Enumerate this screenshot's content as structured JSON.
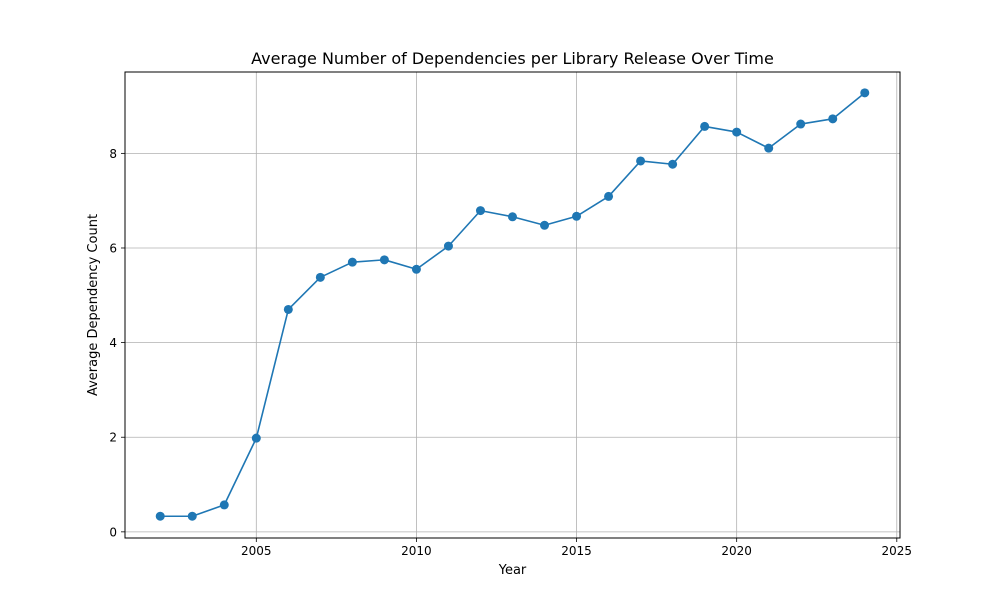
{
  "chart_data": {
    "type": "line",
    "title": "Average Number of Dependencies per Library Release Over Time",
    "xlabel": "Year",
    "ylabel": "Average Dependency Count",
    "xlim": [
      2000.9,
      2025.1
    ],
    "ylim": [
      -0.13,
      9.72
    ],
    "x_ticks": [
      2005,
      2010,
      2015,
      2020,
      2025
    ],
    "y_ticks": [
      0,
      2,
      4,
      6,
      8
    ],
    "grid": true,
    "series": [
      {
        "color": "#1f77b4",
        "marker": "circle",
        "x": [
          2002,
          2003,
          2004,
          2005,
          2006,
          2007,
          2008,
          2009,
          2010,
          2011,
          2012,
          2013,
          2014,
          2015,
          2016,
          2017,
          2018,
          2019,
          2020,
          2021,
          2022,
          2023,
          2024
        ],
        "y": [
          0.33,
          0.33,
          0.57,
          1.98,
          4.7,
          5.38,
          5.7,
          5.75,
          5.55,
          6.04,
          6.79,
          6.66,
          6.48,
          6.67,
          7.09,
          7.84,
          7.77,
          8.57,
          8.45,
          8.11,
          8.62,
          8.73,
          9.28
        ]
      }
    ]
  }
}
